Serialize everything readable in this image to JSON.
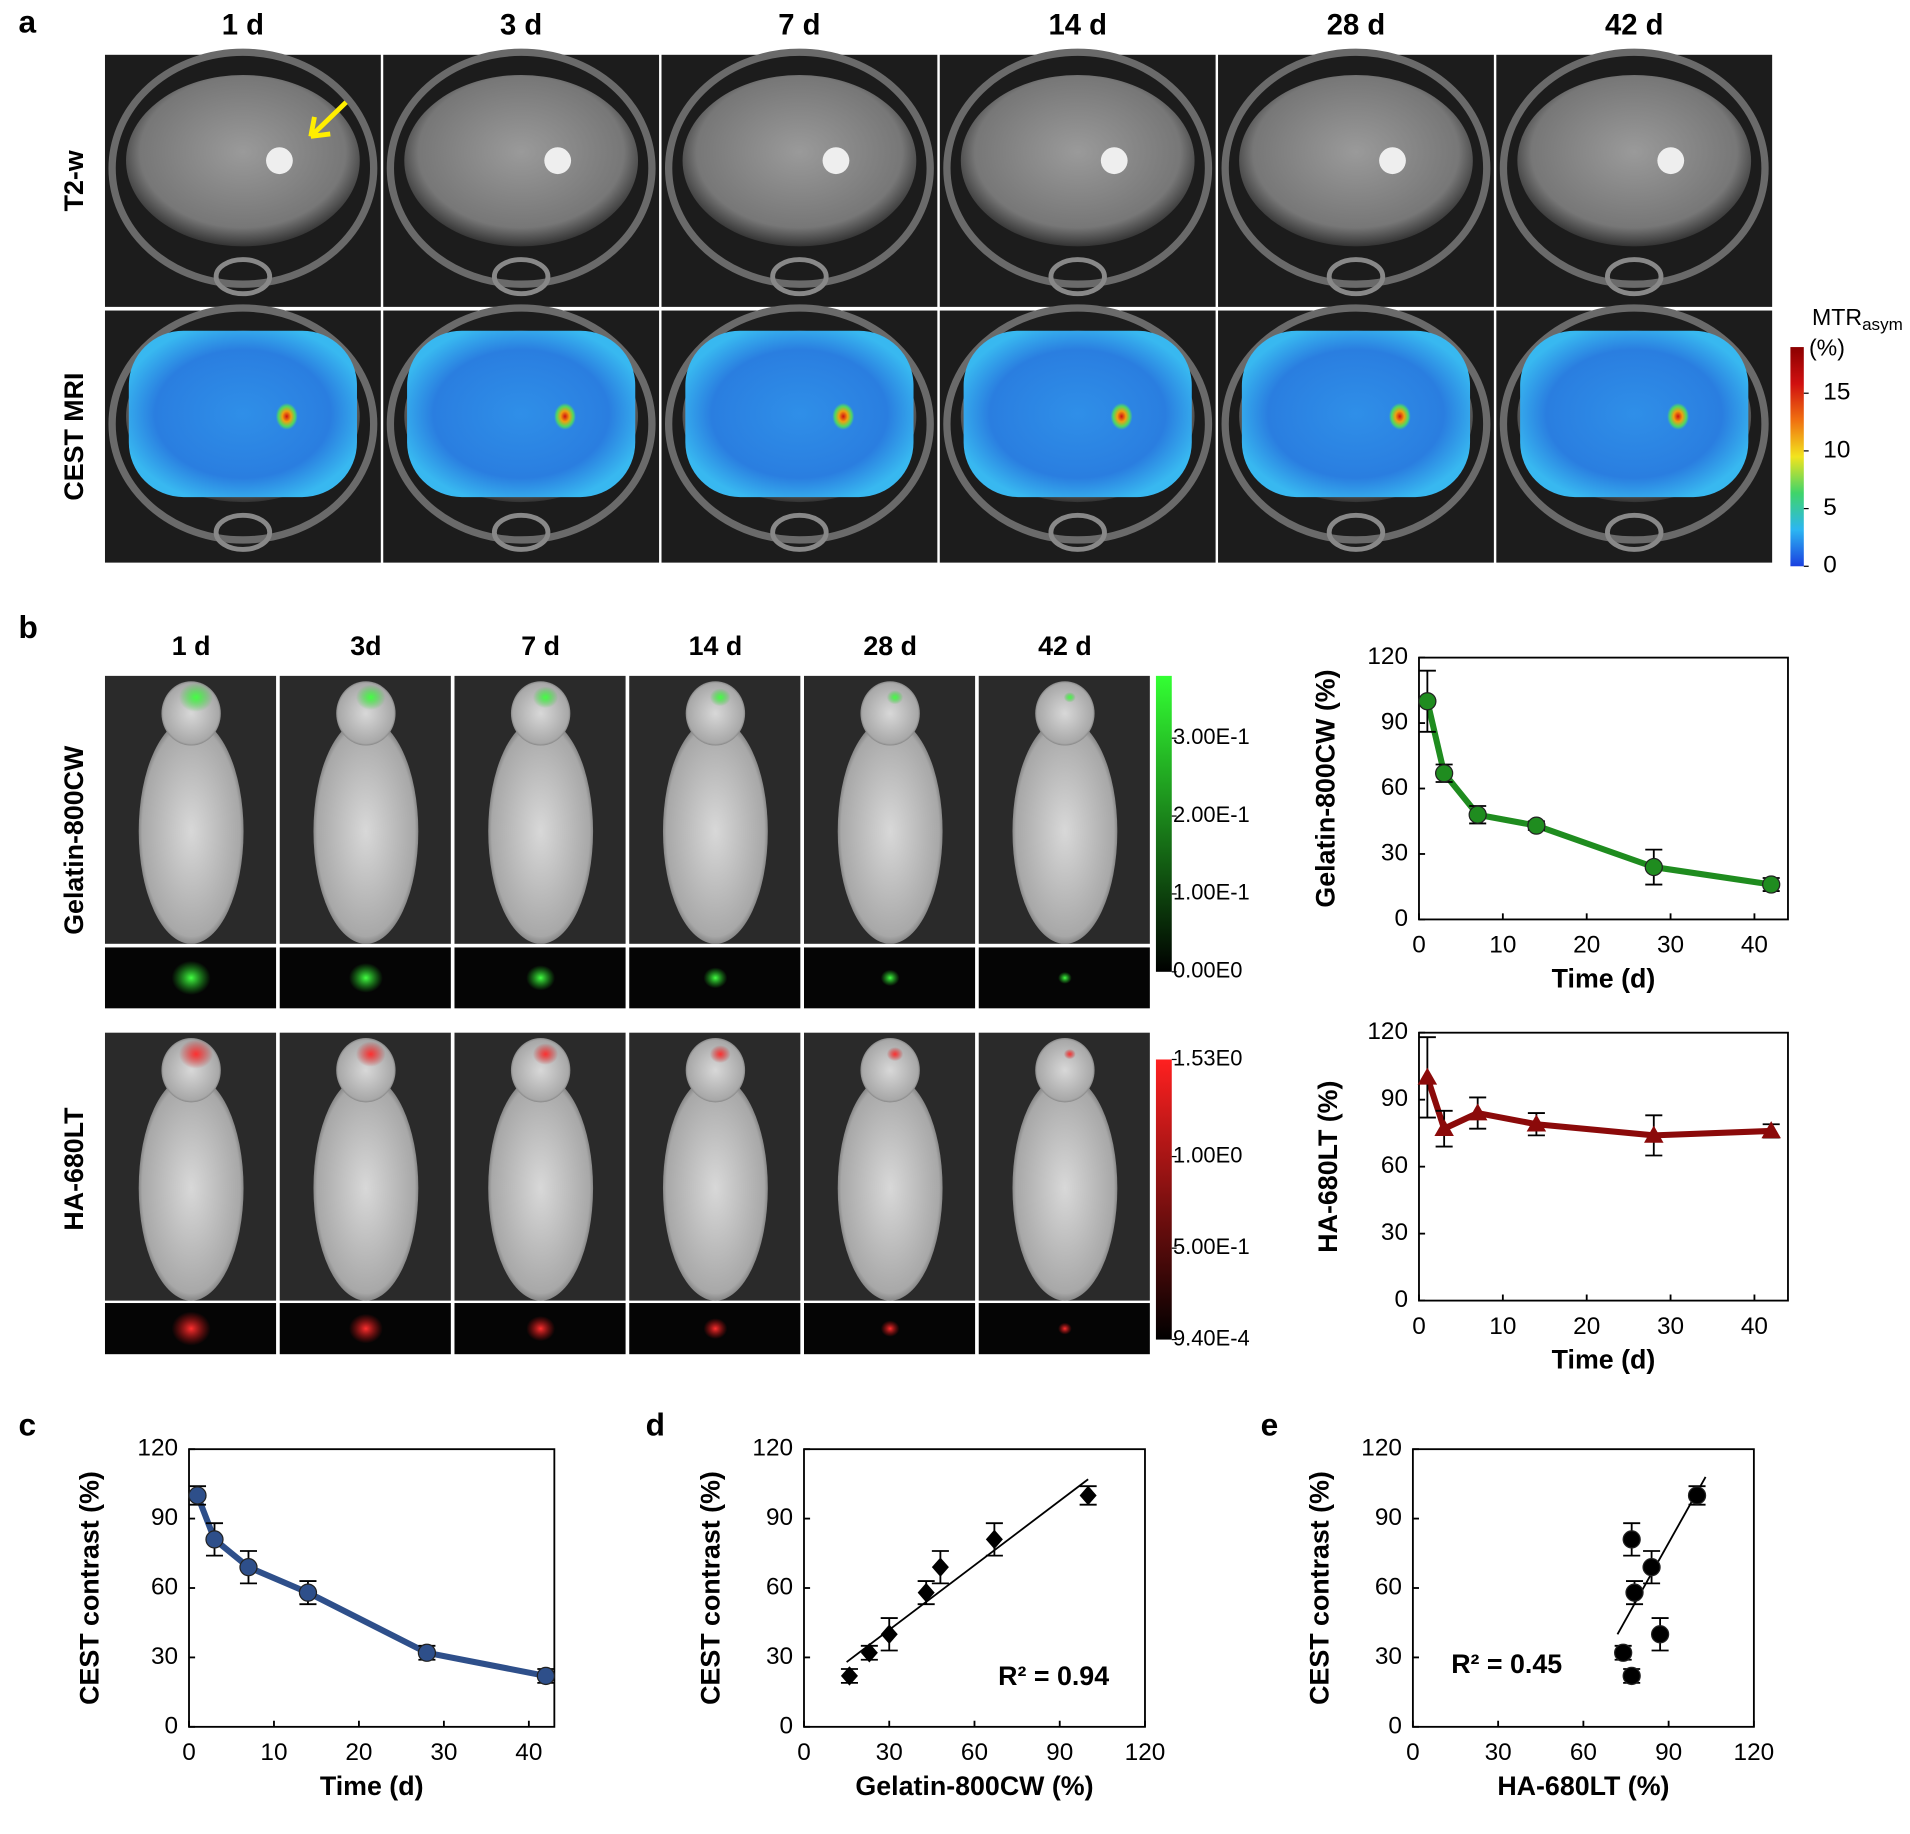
{
  "figure": {
    "panel_labels": [
      "a",
      "b",
      "c",
      "d",
      "e"
    ],
    "a": {
      "columns": [
        "1 d",
        "3 d",
        "7 d",
        "14 d",
        "28 d",
        "42 d"
      ],
      "rows": [
        "T2-w",
        "CEST MRI"
      ],
      "colorbar": {
        "title": "MTR",
        "title_sub": "asym",
        "unit": "(%)",
        "lim": [
          0,
          19
        ],
        "ticks": [
          0,
          5,
          10,
          15
        ],
        "colors": [
          "#1a3fe0",
          "#2cb6f2",
          "#3fd46a",
          "#f2e41e",
          "#f07010",
          "#d01010",
          "#8b0000"
        ]
      }
    },
    "b": {
      "columns": [
        "1 d",
        "3d",
        "7 d",
        "14 d",
        "28 d",
        "42 d"
      ],
      "rows": [
        "Gelatin-800CW",
        "HA-680LT"
      ],
      "colorbars": [
        {
          "lim": [
            0,
            0.38
          ],
          "color": "#33ff33",
          "ticks": [
            {
              "value": 0.3,
              "label": "3.00E-1"
            },
            {
              "value": 0.2,
              "label": "2.00E-1"
            },
            {
              "value": 0.1,
              "label": "1.00E-1"
            },
            {
              "value": 0,
              "label": "0.00E0"
            }
          ]
        },
        {
          "lim": [
            0.00094,
            1.53
          ],
          "color": "#ff2020",
          "ticks": [
            {
              "value": 1.53,
              "label": "1.53E0"
            },
            {
              "value": 1.0,
              "label": "1.00E0"
            },
            {
              "value": 0.5,
              "label": "5.00E-1"
            },
            {
              "value": 0.00094,
              "label": "9.40E-4"
            }
          ]
        }
      ]
    }
  },
  "chart_data": [
    {
      "type": "line",
      "xlabel": "Time (d)",
      "ylabel": "Gelatin-800CW (%)",
      "x": [
        1,
        3,
        7,
        14,
        28,
        42
      ],
      "values": [
        100,
        67,
        48,
        43,
        24,
        16
      ],
      "errors": [
        14,
        4,
        4,
        2,
        8,
        3
      ],
      "color": "#1f8c1f",
      "marker": "circle",
      "xlim": [
        0,
        44
      ],
      "xticks": [
        0,
        10,
        20,
        30,
        40
      ],
      "ylim": [
        0,
        120
      ],
      "yticks": [
        0,
        30,
        60,
        90,
        120
      ]
    },
    {
      "type": "line",
      "xlabel": "Time (d)",
      "ylabel": "HA-680LT (%)",
      "x": [
        1,
        3,
        7,
        14,
        28,
        42
      ],
      "values": [
        100,
        77,
        84,
        79,
        74,
        76
      ],
      "errors": [
        18,
        8,
        7,
        5,
        9,
        3
      ],
      "color": "#8b0a0a",
      "marker": "triangle",
      "xlim": [
        0,
        44
      ],
      "xticks": [
        0,
        10,
        20,
        30,
        40
      ],
      "ylim": [
        0,
        120
      ],
      "yticks": [
        0,
        30,
        60,
        90,
        120
      ]
    },
    {
      "type": "line",
      "xlabel": "Time (d)",
      "ylabel": "CEST contrast (%)",
      "x": [
        1,
        3,
        7,
        14,
        28,
        42
      ],
      "values": [
        100,
        81,
        69,
        58,
        32,
        22
      ],
      "errors": [
        4,
        7,
        7,
        5,
        3,
        3
      ],
      "color": "#2e4f8a",
      "marker": "circle",
      "xlim": [
        0,
        43
      ],
      "xticks": [
        0,
        10,
        20,
        30,
        40
      ],
      "ylim": [
        0,
        120
      ],
      "yticks": [
        0,
        30,
        60,
        90,
        120
      ]
    },
    {
      "type": "scatter",
      "xlabel": "Gelatin-800CW (%)",
      "ylabel": "CEST contrast (%)",
      "x": [
        16,
        23,
        30,
        43,
        48,
        67,
        100
      ],
      "values": [
        22,
        32,
        40,
        58,
        69,
        81,
        100
      ],
      "errors": [
        3,
        3,
        7,
        5,
        7,
        7,
        4
      ],
      "color": "#000000",
      "marker": "diamond",
      "trendline": {
        "x": [
          15,
          100
        ],
        "y": [
          28,
          107
        ]
      },
      "annotation": "R² = 0.94",
      "xlim": [
        0,
        120
      ],
      "xticks": [
        0,
        30,
        60,
        90,
        120
      ],
      "ylim": [
        0,
        120
      ],
      "yticks": [
        0,
        30,
        60,
        90,
        120
      ]
    },
    {
      "type": "scatter",
      "xlabel": "HA-680LT (%)",
      "ylabel": "CEST contrast (%)",
      "x": [
        74,
        77,
        78,
        77,
        84,
        87,
        100
      ],
      "values": [
        32,
        22,
        58,
        81,
        69,
        40,
        100
      ],
      "errors": [
        3,
        3,
        5,
        7,
        7,
        7,
        4
      ],
      "color": "#000000",
      "marker": "circle",
      "trendline": {
        "x": [
          72,
          103
        ],
        "y": [
          40,
          108
        ]
      },
      "annotation": "R² = 0.45",
      "xlim": [
        0,
        120
      ],
      "xticks": [
        0,
        30,
        60,
        90,
        120
      ],
      "ylim": [
        0,
        120
      ],
      "yticks": [
        0,
        30,
        60,
        90,
        120
      ]
    }
  ]
}
